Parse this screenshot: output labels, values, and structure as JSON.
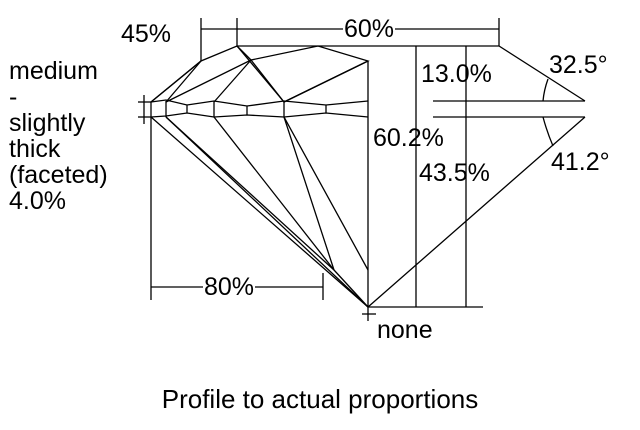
{
  "labels": {
    "crown_angle_pct": "45%",
    "table_pct": "60%",
    "crown_height": "13.0%",
    "crown_angle": "32.5°",
    "total_depth": "60.2%",
    "pavilion_depth": "43.5%",
    "pavilion_angle": "41.2°",
    "lower_half_pct": "80%",
    "culet": "none"
  },
  "girdle": [
    "medium",
    "-",
    "slightly",
    "thick",
    "(faceted)",
    "4.0%"
  ],
  "caption": "Profile to actual proportions",
  "colors": {
    "line": "#000000",
    "background": "#ffffff"
  }
}
